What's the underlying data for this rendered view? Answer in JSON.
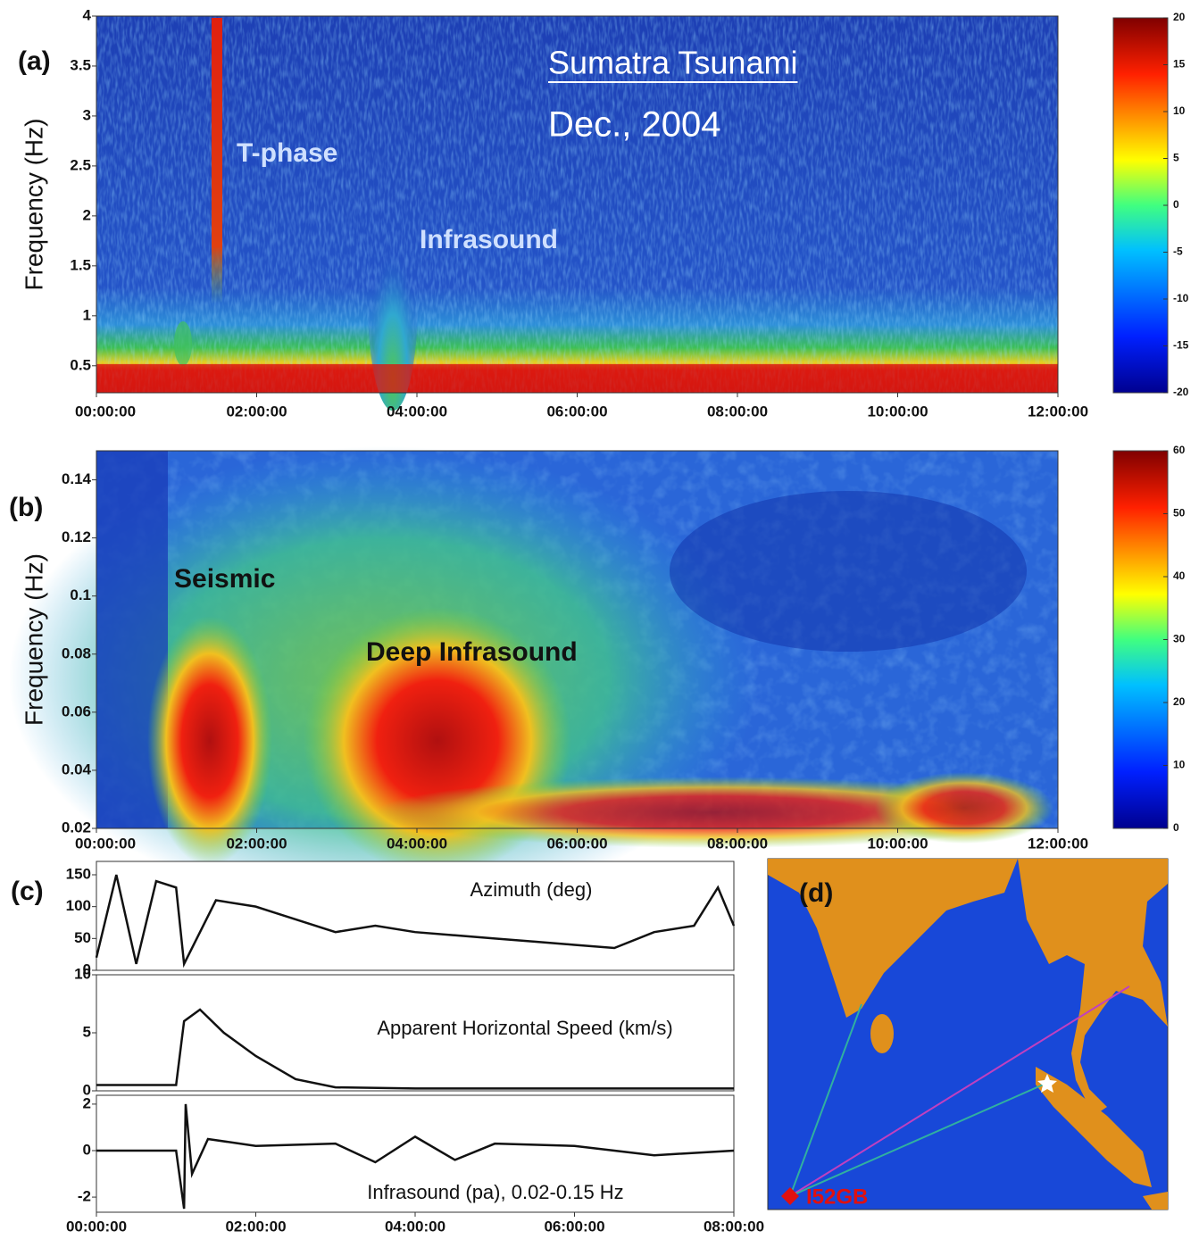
{
  "chart_data": [
    {
      "type": "spectrogram",
      "panel_label": "(a)",
      "ylabel": "Frequency (Hz)",
      "title": "Sumatra Tsunami",
      "subtitle": "Dec., 2004",
      "annotations": [
        "T-phase",
        "Infrasound"
      ],
      "xlim": [
        0,
        12
      ],
      "xticks": [
        {
          "value": 0,
          "label": "00:00:00"
        },
        {
          "value": 2,
          "label": "02:00:00"
        },
        {
          "value": 4,
          "label": "04:00:00"
        },
        {
          "value": 6,
          "label": "06:00:00"
        },
        {
          "value": 8,
          "label": "08:00:00"
        },
        {
          "value": 10,
          "label": "10:00:00"
        },
        {
          "value": 12,
          "label": "12:00:00"
        }
      ],
      "ylim": [
        0.23,
        4
      ],
      "yticks": [
        0.5,
        1,
        1.5,
        2,
        2.5,
        3,
        3.5,
        4
      ],
      "colorbar": {
        "lim": [
          -20,
          20
        ],
        "ticks": [
          -20,
          -15,
          -10,
          -5,
          0,
          5,
          10,
          15,
          20
        ]
      }
    },
    {
      "type": "spectrogram",
      "panel_label": "(b)",
      "ylabel": "Frequency (Hz)",
      "annotations": [
        "Seismic",
        "Deep Infrasound"
      ],
      "xlim": [
        0,
        12
      ],
      "xticks": [
        {
          "value": 0,
          "label": "00:00:00"
        },
        {
          "value": 2,
          "label": "02:00:00"
        },
        {
          "value": 4,
          "label": "04:00:00"
        },
        {
          "value": 6,
          "label": "06:00:00"
        },
        {
          "value": 8,
          "label": "08:00:00"
        },
        {
          "value": 10,
          "label": "10:00:00"
        },
        {
          "value": 12,
          "label": "12:00:00"
        }
      ],
      "ylim": [
        0.02,
        0.15
      ],
      "yticks": [
        0.02,
        0.04,
        0.06,
        0.08,
        0.1,
        0.12,
        0.14
      ],
      "colorbar": {
        "lim": [
          0,
          60
        ],
        "ticks": [
          0,
          10,
          20,
          30,
          40,
          50,
          60
        ]
      }
    },
    {
      "type": "line",
      "panel_label": "(c)",
      "title": "Azimuth (deg)",
      "x": [
        0,
        0.25,
        0.5,
        0.75,
        1.0,
        1.1,
        1.5,
        2,
        2.5,
        3,
        3.5,
        4,
        4.5,
        5,
        5.5,
        6,
        6.5,
        7,
        7.5,
        7.8,
        8
      ],
      "values": [
        20,
        150,
        10,
        140,
        130,
        10,
        110,
        100,
        80,
        60,
        70,
        60,
        55,
        50,
        45,
        40,
        35,
        60,
        70,
        130,
        70
      ],
      "xlim": [
        0,
        8
      ],
      "ylim": [
        0,
        171
      ],
      "yticks": [
        0,
        50,
        100,
        150
      ]
    },
    {
      "type": "line",
      "title": "Apparent Horizontal Speed (km/s)",
      "x": [
        0,
        1,
        1.1,
        1.3,
        1.6,
        2,
        2.5,
        3,
        4,
        5,
        6,
        7,
        8
      ],
      "values": [
        0.5,
        0.5,
        6,
        7,
        5,
        3,
        1,
        0.3,
        0.2,
        0.2,
        0.2,
        0.2,
        0.2
      ],
      "xlim": [
        0,
        8
      ],
      "ylim": [
        0,
        10
      ],
      "yticks": [
        0,
        5,
        10
      ]
    },
    {
      "type": "line",
      "title": "Infrasound (pa), 0.02-0.15 Hz",
      "x": [
        0,
        1,
        1.1,
        1.12,
        1.2,
        1.4,
        2,
        3,
        3.5,
        4,
        4.5,
        5,
        6,
        7,
        8
      ],
      "values": [
        0,
        0,
        -2.5,
        2,
        -1,
        0.5,
        0.2,
        0.3,
        -0.5,
        0.6,
        -0.4,
        0.3,
        0.2,
        -0.2,
        0
      ],
      "xlim": [
        0,
        8
      ],
      "ylim": [
        -2.65,
        2.38
      ],
      "yticks": [
        -2,
        0,
        2
      ],
      "xticks": [
        {
          "value": 0,
          "label": "00:00:00"
        },
        {
          "value": 2,
          "label": "02:00:00"
        },
        {
          "value": 4,
          "label": "04:00:00"
        },
        {
          "value": 6,
          "label": "06:00:00"
        },
        {
          "value": 8,
          "label": "08:00:00"
        }
      ]
    },
    {
      "type": "map",
      "panel_label": "(d)",
      "annotations": [
        "I52GB"
      ]
    }
  ]
}
